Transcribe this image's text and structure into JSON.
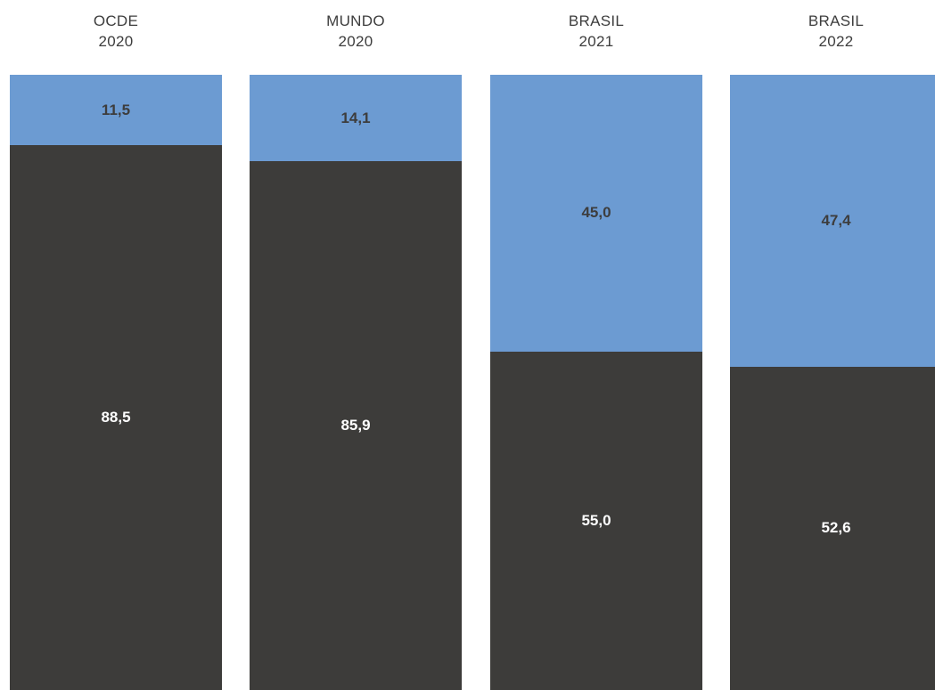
{
  "chart_data": {
    "type": "bar",
    "stacked": true,
    "categories": [
      {
        "line1": "OCDE",
        "line2": "2020"
      },
      {
        "line1": "MUNDO",
        "line2": "2020"
      },
      {
        "line1": "BRASIL",
        "line2": "2021"
      },
      {
        "line1": "BRASIL",
        "line2": "2022"
      }
    ],
    "series": [
      {
        "color": "#3d3c3a",
        "label_color": "#ffffff",
        "values": [
          88.5,
          85.9,
          55.0,
          52.6
        ],
        "labels": [
          "88,5",
          "85,9",
          "55,0",
          "52,6"
        ]
      },
      {
        "color": "#6c9bd2",
        "label_color": "#3d3d3d",
        "values": [
          11.5,
          14.1,
          45.0,
          47.4
        ],
        "labels": [
          "11,5",
          "14,1",
          "45,0",
          "47,4"
        ]
      }
    ],
    "ylim": [
      0,
      100
    ],
    "grid": false,
    "legend": "none"
  }
}
